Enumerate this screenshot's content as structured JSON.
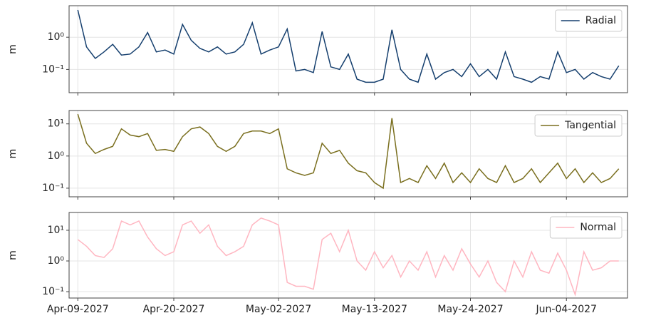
{
  "chart_data": [
    {
      "type": "line",
      "y_label": "m",
      "log_y": true,
      "grid": true,
      "legend": "upper right",
      "x": [
        "2027-04-09",
        "2027-04-10",
        "2027-04-11",
        "2027-04-12",
        "2027-04-13",
        "2027-04-14",
        "2027-04-15",
        "2027-04-16",
        "2027-04-17",
        "2027-04-18",
        "2027-04-19",
        "2027-04-20",
        "2027-04-21",
        "2027-04-22",
        "2027-04-23",
        "2027-04-24",
        "2027-04-25",
        "2027-04-26",
        "2027-04-27",
        "2027-04-28",
        "2027-04-29",
        "2027-04-30",
        "2027-05-01",
        "2027-05-02",
        "2027-05-03",
        "2027-05-04",
        "2027-05-05",
        "2027-05-06",
        "2027-05-07",
        "2027-05-08",
        "2027-05-09",
        "2027-05-10",
        "2027-05-11",
        "2027-05-12",
        "2027-05-13",
        "2027-05-14",
        "2027-05-15",
        "2027-05-16",
        "2027-05-17",
        "2027-05-18",
        "2027-05-19",
        "2027-05-20",
        "2027-05-21",
        "2027-05-22",
        "2027-05-23",
        "2027-05-24",
        "2027-05-25",
        "2027-05-26",
        "2027-05-27",
        "2027-05-28",
        "2027-05-29",
        "2027-05-30",
        "2027-05-31",
        "2027-06-01",
        "2027-06-02",
        "2027-06-03",
        "2027-06-04",
        "2027-06-05",
        "2027-06-06",
        "2027-06-07",
        "2027-06-08",
        "2027-06-09",
        "2027-06-10"
      ],
      "xlim": [
        "2027-04-08",
        "2027-06-11"
      ],
      "ylim": [
        0.019,
        9.5
      ],
      "yticks": [
        {
          "value": 0.1,
          "label": "10⁻¹"
        },
        {
          "value": 1,
          "label": "10⁰"
        }
      ],
      "series": [
        {
          "name": "Radial",
          "color": "#153f6e",
          "values": [
            7,
            0.5,
            0.22,
            0.35,
            0.6,
            0.28,
            0.3,
            0.5,
            1.4,
            0.35,
            0.4,
            0.3,
            2.5,
            0.8,
            0.45,
            0.35,
            0.5,
            0.3,
            0.35,
            0.6,
            2.8,
            0.3,
            0.4,
            0.5,
            1.8,
            0.09,
            0.1,
            0.08,
            1.5,
            0.12,
            0.1,
            0.3,
            0.05,
            0.04,
            0.04,
            0.05,
            1.7,
            0.1,
            0.05,
            0.04,
            0.3,
            0.05,
            0.08,
            0.1,
            0.06,
            0.15,
            0.06,
            0.1,
            0.05,
            0.35,
            0.06,
            0.05,
            0.04,
            0.06,
            0.05,
            0.35,
            0.08,
            0.1,
            0.05,
            0.08,
            0.06,
            0.05,
            0.13
          ]
        }
      ]
    },
    {
      "type": "line",
      "y_label": "m",
      "log_y": true,
      "grid": true,
      "legend": "upper right",
      "x": [
        "2027-04-09",
        "2027-04-10",
        "2027-04-11",
        "2027-04-12",
        "2027-04-13",
        "2027-04-14",
        "2027-04-15",
        "2027-04-16",
        "2027-04-17",
        "2027-04-18",
        "2027-04-19",
        "2027-04-20",
        "2027-04-21",
        "2027-04-22",
        "2027-04-23",
        "2027-04-24",
        "2027-04-25",
        "2027-04-26",
        "2027-04-27",
        "2027-04-28",
        "2027-04-29",
        "2027-04-30",
        "2027-05-01",
        "2027-05-02",
        "2027-05-03",
        "2027-05-04",
        "2027-05-05",
        "2027-05-06",
        "2027-05-07",
        "2027-05-08",
        "2027-05-09",
        "2027-05-10",
        "2027-05-11",
        "2027-05-12",
        "2027-05-13",
        "2027-05-14",
        "2027-05-15",
        "2027-05-16",
        "2027-05-17",
        "2027-05-18",
        "2027-05-19",
        "2027-05-20",
        "2027-05-21",
        "2027-05-22",
        "2027-05-23",
        "2027-05-24",
        "2027-05-25",
        "2027-05-26",
        "2027-05-27",
        "2027-05-28",
        "2027-05-29",
        "2027-05-30",
        "2027-05-31",
        "2027-06-01",
        "2027-06-02",
        "2027-06-03",
        "2027-06-04",
        "2027-06-05",
        "2027-06-06",
        "2027-06-07",
        "2027-06-08",
        "2027-06-09",
        "2027-06-10"
      ],
      "xlim": [
        "2027-04-08",
        "2027-06-11"
      ],
      "ylim": [
        0.054,
        26
      ],
      "yticks": [
        {
          "value": 0.1,
          "label": "10⁻¹"
        },
        {
          "value": 1,
          "label": "10⁰"
        },
        {
          "value": 10,
          "label": "10¹"
        }
      ],
      "series": [
        {
          "name": "Tangential",
          "color": "#7a6f1f",
          "values": [
            20,
            2.5,
            1.2,
            1.6,
            2,
            7,
            4.5,
            4,
            5,
            1.5,
            1.6,
            1.4,
            4,
            7,
            8,
            5,
            2,
            1.4,
            2,
            5,
            6,
            6,
            5,
            7,
            0.4,
            0.3,
            0.25,
            0.3,
            2.5,
            1.2,
            1.5,
            0.6,
            0.35,
            0.3,
            0.15,
            0.1,
            15,
            0.15,
            0.2,
            0.15,
            0.5,
            0.2,
            0.6,
            0.15,
            0.3,
            0.15,
            0.4,
            0.2,
            0.15,
            0.5,
            0.15,
            0.2,
            0.4,
            0.15,
            0.3,
            0.6,
            0.2,
            0.4,
            0.15,
            0.3,
            0.15,
            0.2,
            0.4
          ]
        }
      ]
    },
    {
      "type": "line",
      "y_label": "m",
      "log_y": true,
      "grid": true,
      "legend": "upper right",
      "x": [
        "2027-04-09",
        "2027-04-10",
        "2027-04-11",
        "2027-04-12",
        "2027-04-13",
        "2027-04-14",
        "2027-04-15",
        "2027-04-16",
        "2027-04-17",
        "2027-04-18",
        "2027-04-19",
        "2027-04-20",
        "2027-04-21",
        "2027-04-22",
        "2027-04-23",
        "2027-04-24",
        "2027-04-25",
        "2027-04-26",
        "2027-04-27",
        "2027-04-28",
        "2027-04-29",
        "2027-04-30",
        "2027-05-01",
        "2027-05-02",
        "2027-05-03",
        "2027-05-04",
        "2027-05-05",
        "2027-05-06",
        "2027-05-07",
        "2027-05-08",
        "2027-05-09",
        "2027-05-10",
        "2027-05-11",
        "2027-05-12",
        "2027-05-13",
        "2027-05-14",
        "2027-05-15",
        "2027-05-16",
        "2027-05-17",
        "2027-05-18",
        "2027-05-19",
        "2027-05-20",
        "2027-05-21",
        "2027-05-22",
        "2027-05-23",
        "2027-05-24",
        "2027-05-25",
        "2027-05-26",
        "2027-05-27",
        "2027-05-28",
        "2027-05-29",
        "2027-05-30",
        "2027-05-31",
        "2027-06-01",
        "2027-06-02",
        "2027-06-03",
        "2027-06-04",
        "2027-06-05",
        "2027-06-06",
        "2027-06-07",
        "2027-06-08",
        "2027-06-09",
        "2027-06-10"
      ],
      "xlim": [
        "2027-04-08",
        "2027-06-11"
      ],
      "xticks": [
        {
          "value": "2027-04-09",
          "label": "Apr-09-2027"
        },
        {
          "value": "2027-04-20",
          "label": "Apr-20-2027"
        },
        {
          "value": "2027-05-02",
          "label": "May-02-2027"
        },
        {
          "value": "2027-05-13",
          "label": "May-13-2027"
        },
        {
          "value": "2027-05-24",
          "label": "May-24-2027"
        },
        {
          "value": "2027-06-04",
          "label": "Jun-04-2027"
        }
      ],
      "ylim": [
        0.062,
        38
      ],
      "yticks": [
        {
          "value": 0.1,
          "label": "10⁻¹"
        },
        {
          "value": 1,
          "label": "10⁰"
        },
        {
          "value": 10,
          "label": "10¹"
        }
      ],
      "series": [
        {
          "name": "Normal",
          "color": "#ffb6c1",
          "values": [
            5,
            3,
            1.5,
            1.3,
            2.5,
            20,
            15,
            20,
            6,
            2.5,
            1.5,
            2,
            15,
            20,
            8,
            15,
            3,
            1.5,
            2,
            3,
            15,
            25,
            20,
            15,
            0.2,
            0.15,
            0.15,
            0.12,
            5,
            8,
            2,
            10,
            1,
            0.5,
            2,
            0.6,
            1.5,
            0.3,
            1,
            0.5,
            2,
            0.3,
            1.5,
            0.5,
            2.5,
            0.8,
            0.3,
            1,
            0.2,
            0.1,
            1,
            0.3,
            2,
            0.5,
            0.4,
            1.8,
            0.5,
            0.08,
            2,
            0.5,
            0.6,
            1,
            1
          ]
        }
      ]
    }
  ]
}
